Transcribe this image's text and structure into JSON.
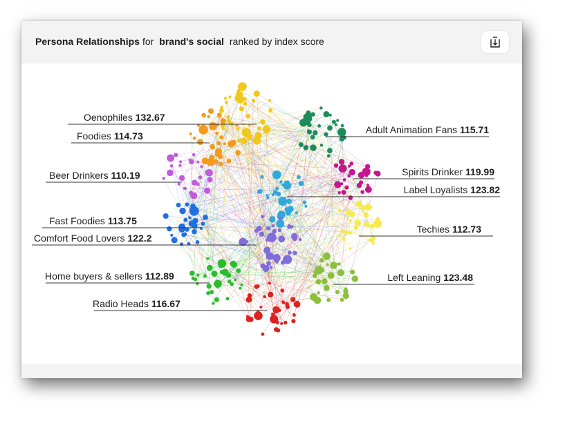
{
  "header": {
    "title_prefix": "Persona Relationships",
    "title_for": "for",
    "title_brand": "brand's social",
    "title_suffix": "ranked by index score"
  },
  "icons": {
    "download": "download-icon"
  },
  "personas": [
    {
      "name": "Oenophiles",
      "score": "132.67",
      "color": "#f39a1f",
      "side": "left"
    },
    {
      "name": "Foodies",
      "score": "114.73",
      "color": "#f39a1f",
      "side": "left"
    },
    {
      "name": "Beer Drinkers",
      "score": "110.19",
      "color": "#c05bdc",
      "side": "left"
    },
    {
      "name": "Fast Foodies",
      "score": "113.75",
      "color": "#1f6fe0",
      "side": "left"
    },
    {
      "name": "Comfort Food Lovers",
      "score": "122.2",
      "color": "#7f6ddc",
      "side": "left"
    },
    {
      "name": "Home buyers & sellers",
      "score": "112.89",
      "color": "#2cbd2c",
      "side": "left"
    },
    {
      "name": "Radio Heads",
      "score": "116.67",
      "color": "#dd2222",
      "side": "left"
    },
    {
      "name": "Adult Animation Fans",
      "score": "115.71",
      "color": "#1e8c5a",
      "side": "right"
    },
    {
      "name": "Spirits Drinker",
      "score": "119.99",
      "color": "#c4168f",
      "side": "right"
    },
    {
      "name": "Label Loyalists",
      "score": "123.82",
      "color": "#30a8dc",
      "side": "right"
    },
    {
      "name": "Techies",
      "score": "112.73",
      "color": "#f7ea4a",
      "side": "right"
    },
    {
      "name": "Left Leaning",
      "score": "123.48",
      "color": "#8cc03c",
      "side": "right"
    }
  ]
}
